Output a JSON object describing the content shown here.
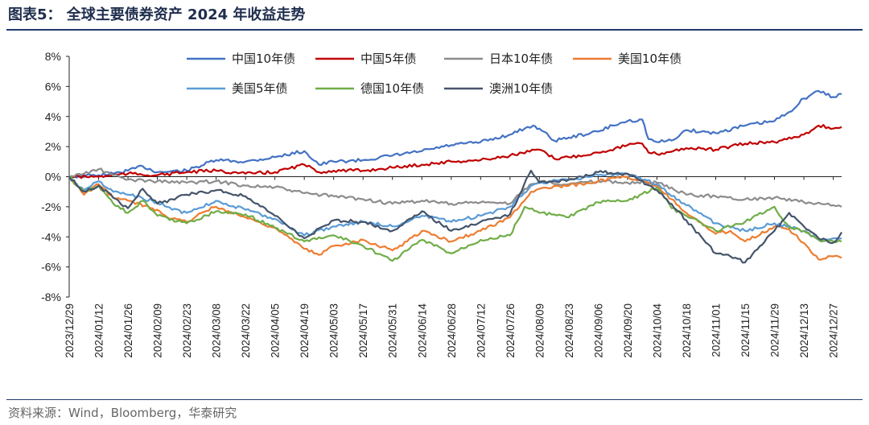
{
  "figure": {
    "title": "图表5：  全球主要债券资产 2024 年收益走势",
    "source": "资料来源：Wind，Bloomberg，华泰研究"
  },
  "chart_data": {
    "type": "line",
    "title": "",
    "xlabel": "",
    "ylabel": "",
    "ylim": [
      -8,
      8
    ],
    "y_ticks": [
      8,
      6,
      4,
      2,
      0,
      -2,
      -4,
      -6,
      -8
    ],
    "y_tick_labels": [
      "8%",
      "6%",
      "4%",
      "2%",
      "0%",
      "-2%",
      "-4%",
      "-6%",
      "-8%"
    ],
    "x_tick_labels": [
      "2023/12/29",
      "2024/01/12",
      "2024/01/26",
      "2024/02/09",
      "2024/02/23",
      "2024/03/08",
      "2024/03/22",
      "2024/04/05",
      "2024/04/19",
      "2024/05/03",
      "2024/05/17",
      "2024/05/31",
      "2024/06/14",
      "2024/06/28",
      "2024/07/12",
      "2024/07/26",
      "2024/08/09",
      "2024/08/23",
      "2024/09/06",
      "2024/09/20",
      "2024/10/04",
      "2024/10/18",
      "2024/11/01",
      "2024/11/15",
      "2024/11/29",
      "2024/12/13",
      "2024/12/27"
    ],
    "x_end_date": "2024/12/31",
    "legend_position": "top",
    "grid": false,
    "series": [
      {
        "name": "中国10年债",
        "color": "#4472c4",
        "points": [
          [
            "2023/12/29",
            0
          ],
          [
            "2024/01/12",
            0.1
          ],
          [
            "2024/01/19",
            0.2
          ],
          [
            "2024/01/26",
            0.4
          ],
          [
            "2024/02/02",
            0.7
          ],
          [
            "2024/02/09",
            0.3
          ],
          [
            "2024/02/23",
            0.4
          ],
          [
            "2024/03/08",
            1.1
          ],
          [
            "2024/03/22",
            1.0
          ],
          [
            "2024/04/05",
            1.3
          ],
          [
            "2024/04/19",
            1.7
          ],
          [
            "2024/04/26",
            0.8
          ],
          [
            "2024/05/03",
            1.0
          ],
          [
            "2024/05/17",
            1.1
          ],
          [
            "2024/05/31",
            1.4
          ],
          [
            "2024/06/14",
            1.7
          ],
          [
            "2024/06/28",
            2.1
          ],
          [
            "2024/07/12",
            2.3
          ],
          [
            "2024/07/26",
            2.8
          ],
          [
            "2024/08/02",
            3.2
          ],
          [
            "2024/08/06",
            3.4
          ],
          [
            "2024/08/09",
            3.2
          ],
          [
            "2024/08/16",
            2.4
          ],
          [
            "2024/08/23",
            2.6
          ],
          [
            "2024/09/06",
            3.0
          ],
          [
            "2024/09/13",
            3.4
          ],
          [
            "2024/09/20",
            3.7
          ],
          [
            "2024/09/27",
            3.8
          ],
          [
            "2024/09/30",
            2.5
          ],
          [
            "2024/10/04",
            2.3
          ],
          [
            "2024/10/11",
            2.4
          ],
          [
            "2024/10/18",
            3.1
          ],
          [
            "2024/11/01",
            2.9
          ],
          [
            "2024/11/15",
            3.4
          ],
          [
            "2024/11/29",
            3.7
          ],
          [
            "2024/12/06",
            4.3
          ],
          [
            "2024/12/13",
            5.2
          ],
          [
            "2024/12/20",
            5.7
          ],
          [
            "2024/12/27",
            5.3
          ],
          [
            "2024/12/31",
            5.5
          ]
        ]
      },
      {
        "name": "中国5年债",
        "color": "#c00000",
        "points": [
          [
            "2023/12/29",
            0
          ],
          [
            "2024/01/12",
            0.0
          ],
          [
            "2024/01/26",
            0.2
          ],
          [
            "2024/02/09",
            0.1
          ],
          [
            "2024/02/23",
            0.3
          ],
          [
            "2024/03/08",
            0.4
          ],
          [
            "2024/03/22",
            0.2
          ],
          [
            "2024/04/05",
            0.3
          ],
          [
            "2024/04/19",
            0.8
          ],
          [
            "2024/04/26",
            0.3
          ],
          [
            "2024/05/03",
            0.4
          ],
          [
            "2024/05/17",
            0.4
          ],
          [
            "2024/05/31",
            0.6
          ],
          [
            "2024/06/14",
            0.8
          ],
          [
            "2024/06/28",
            1.0
          ],
          [
            "2024/07/12",
            1.1
          ],
          [
            "2024/07/26",
            1.4
          ],
          [
            "2024/08/09",
            1.8
          ],
          [
            "2024/08/16",
            1.2
          ],
          [
            "2024/08/23",
            1.3
          ],
          [
            "2024/09/06",
            1.6
          ],
          [
            "2024/09/20",
            2.1
          ],
          [
            "2024/09/27",
            2.2
          ],
          [
            "2024/09/30",
            1.6
          ],
          [
            "2024/10/04",
            1.5
          ],
          [
            "2024/10/18",
            1.9
          ],
          [
            "2024/11/01",
            1.8
          ],
          [
            "2024/11/15",
            2.2
          ],
          [
            "2024/11/29",
            2.3
          ],
          [
            "2024/12/13",
            2.8
          ],
          [
            "2024/12/20",
            3.4
          ],
          [
            "2024/12/27",
            3.2
          ],
          [
            "2024/12/31",
            3.3
          ]
        ]
      },
      {
        "name": "日本10年债",
        "color": "#8c8c8c",
        "points": [
          [
            "2023/12/29",
            0
          ],
          [
            "2024/01/05",
            0.2
          ],
          [
            "2024/01/12",
            0.5
          ],
          [
            "2024/01/19",
            0.1
          ],
          [
            "2024/01/26",
            -0.2
          ],
          [
            "2024/02/09",
            -0.3
          ],
          [
            "2024/02/23",
            -0.4
          ],
          [
            "2024/03/08",
            -0.3
          ],
          [
            "2024/03/22",
            -0.6
          ],
          [
            "2024/04/05",
            -0.7
          ],
          [
            "2024/04/19",
            -1.1
          ],
          [
            "2024/05/03",
            -1.3
          ],
          [
            "2024/05/17",
            -1.5
          ],
          [
            "2024/05/31",
            -1.8
          ],
          [
            "2024/06/14",
            -1.6
          ],
          [
            "2024/06/28",
            -1.8
          ],
          [
            "2024/07/12",
            -1.7
          ],
          [
            "2024/07/26",
            -1.8
          ],
          [
            "2024/08/02",
            -0.8
          ],
          [
            "2024/08/09",
            -0.3
          ],
          [
            "2024/08/23",
            -0.5
          ],
          [
            "2024/09/06",
            -0.3
          ],
          [
            "2024/09/20",
            -0.4
          ],
          [
            "2024/10/04",
            -0.4
          ],
          [
            "2024/10/18",
            -1.2
          ],
          [
            "2024/11/01",
            -1.3
          ],
          [
            "2024/11/15",
            -1.5
          ],
          [
            "2024/11/29",
            -1.4
          ],
          [
            "2024/12/13",
            -1.7
          ],
          [
            "2024/12/27",
            -1.9
          ],
          [
            "2024/12/31",
            -2.0
          ]
        ]
      },
      {
        "name": "美国10年债",
        "color": "#ed7d31",
        "points": [
          [
            "2023/12/29",
            0
          ],
          [
            "2024/01/05",
            -1.2
          ],
          [
            "2024/01/12",
            -0.5
          ],
          [
            "2024/01/19",
            -1.4
          ],
          [
            "2024/01/26",
            -1.6
          ],
          [
            "2024/02/09",
            -2.2
          ],
          [
            "2024/02/16",
            -2.8
          ],
          [
            "2024/02/23",
            -3.0
          ],
          [
            "2024/03/01",
            -2.4
          ],
          [
            "2024/03/08",
            -2.0
          ],
          [
            "2024/03/22",
            -2.7
          ],
          [
            "2024/04/05",
            -3.4
          ],
          [
            "2024/04/19",
            -4.8
          ],
          [
            "2024/04/26",
            -5.2
          ],
          [
            "2024/05/03",
            -4.6
          ],
          [
            "2024/05/17",
            -4.2
          ],
          [
            "2024/05/31",
            -4.9
          ],
          [
            "2024/06/07",
            -4.3
          ],
          [
            "2024/06/14",
            -3.6
          ],
          [
            "2024/06/28",
            -4.3
          ],
          [
            "2024/07/12",
            -3.6
          ],
          [
            "2024/07/26",
            -2.7
          ],
          [
            "2024/08/05",
            -1.0
          ],
          [
            "2024/08/09",
            -0.8
          ],
          [
            "2024/08/23",
            -0.6
          ],
          [
            "2024/09/06",
            -0.3
          ],
          [
            "2024/09/20",
            0.0
          ],
          [
            "2024/10/04",
            -0.6
          ],
          [
            "2024/10/11",
            -1.5
          ],
          [
            "2024/10/18",
            -2.4
          ],
          [
            "2024/11/01",
            -3.8
          ],
          [
            "2024/11/08",
            -3.6
          ],
          [
            "2024/11/15",
            -4.3
          ],
          [
            "2024/11/29",
            -3.3
          ],
          [
            "2024/12/06",
            -3.5
          ],
          [
            "2024/12/13",
            -4.4
          ],
          [
            "2024/12/20",
            -5.5
          ],
          [
            "2024/12/27",
            -5.3
          ],
          [
            "2024/12/31",
            -5.4
          ]
        ]
      },
      {
        "name": "美国5年债",
        "color": "#5b9bd5",
        "points": [
          [
            "2023/12/29",
            0
          ],
          [
            "2024/01/05",
            -0.9
          ],
          [
            "2024/01/12",
            -0.3
          ],
          [
            "2024/01/19",
            -1.0
          ],
          [
            "2024/01/26",
            -1.2
          ],
          [
            "2024/02/09",
            -1.7
          ],
          [
            "2024/02/16",
            -2.2
          ],
          [
            "2024/02/23",
            -2.4
          ],
          [
            "2024/03/08",
            -1.6
          ],
          [
            "2024/03/22",
            -2.2
          ],
          [
            "2024/04/05",
            -2.8
          ],
          [
            "2024/04/19",
            -3.9
          ],
          [
            "2024/05/03",
            -3.3
          ],
          [
            "2024/05/17",
            -3.0
          ],
          [
            "2024/05/31",
            -3.3
          ],
          [
            "2024/06/14",
            -2.6
          ],
          [
            "2024/06/28",
            -3.0
          ],
          [
            "2024/07/12",
            -2.6
          ],
          [
            "2024/07/26",
            -2.0
          ],
          [
            "2024/08/05",
            -0.6
          ],
          [
            "2024/08/09",
            -0.4
          ],
          [
            "2024/08/23",
            -0.2
          ],
          [
            "2024/09/06",
            0.1
          ],
          [
            "2024/09/20",
            0.2
          ],
          [
            "2024/10/04",
            -0.5
          ],
          [
            "2024/10/18",
            -1.9
          ],
          [
            "2024/11/01",
            -3.1
          ],
          [
            "2024/11/15",
            -3.6
          ],
          [
            "2024/11/29",
            -3.1
          ],
          [
            "2024/12/13",
            -3.6
          ],
          [
            "2024/12/20",
            -4.2
          ],
          [
            "2024/12/27",
            -4.1
          ],
          [
            "2024/12/31",
            -4.1
          ]
        ]
      },
      {
        "name": "德国10年债",
        "color": "#70ad47",
        "points": [
          [
            "2023/12/29",
            0
          ],
          [
            "2024/01/05",
            -1.0
          ],
          [
            "2024/01/12",
            -0.6
          ],
          [
            "2024/01/19",
            -1.8
          ],
          [
            "2024/01/26",
            -2.4
          ],
          [
            "2024/02/02",
            -1.6
          ],
          [
            "2024/02/09",
            -2.6
          ],
          [
            "2024/02/23",
            -3.1
          ],
          [
            "2024/03/08",
            -2.3
          ],
          [
            "2024/03/22",
            -2.5
          ],
          [
            "2024/04/05",
            -3.4
          ],
          [
            "2024/04/19",
            -4.3
          ],
          [
            "2024/05/03",
            -3.9
          ],
          [
            "2024/05/17",
            -4.6
          ],
          [
            "2024/05/31",
            -5.6
          ],
          [
            "2024/06/14",
            -4.2
          ],
          [
            "2024/06/28",
            -5.1
          ],
          [
            "2024/07/12",
            -4.2
          ],
          [
            "2024/07/26",
            -3.9
          ],
          [
            "2024/08/02",
            -2.0
          ],
          [
            "2024/08/09",
            -2.4
          ],
          [
            "2024/08/23",
            -2.7
          ],
          [
            "2024/09/06",
            -1.7
          ],
          [
            "2024/09/20",
            -1.6
          ],
          [
            "2024/10/04",
            -0.7
          ],
          [
            "2024/10/11",
            -2.1
          ],
          [
            "2024/10/18",
            -2.6
          ],
          [
            "2024/11/01",
            -3.6
          ],
          [
            "2024/11/15",
            -3.0
          ],
          [
            "2024/11/29",
            -2.0
          ],
          [
            "2024/12/06",
            -3.4
          ],
          [
            "2024/12/13",
            -3.6
          ],
          [
            "2024/12/20",
            -4.2
          ],
          [
            "2024/12/27",
            -4.3
          ],
          [
            "2024/12/31",
            -4.3
          ]
        ]
      },
      {
        "name": "澳洲10年债",
        "color": "#44546a",
        "points": [
          [
            "2023/12/29",
            0
          ],
          [
            "2024/01/05",
            -1.0
          ],
          [
            "2024/01/12",
            -0.6
          ],
          [
            "2024/01/19",
            -1.4
          ],
          [
            "2024/01/26",
            -2.1
          ],
          [
            "2024/02/02",
            -0.8
          ],
          [
            "2024/02/09",
            -1.8
          ],
          [
            "2024/02/23",
            -1.2
          ],
          [
            "2024/03/08",
            -0.9
          ],
          [
            "2024/03/22",
            -1.3
          ],
          [
            "2024/04/05",
            -2.6
          ],
          [
            "2024/04/19",
            -4.1
          ],
          [
            "2024/05/03",
            -2.9
          ],
          [
            "2024/05/17",
            -3.0
          ],
          [
            "2024/05/31",
            -3.6
          ],
          [
            "2024/06/14",
            -2.3
          ],
          [
            "2024/06/28",
            -3.6
          ],
          [
            "2024/07/12",
            -3.0
          ],
          [
            "2024/07/26",
            -2.5
          ],
          [
            "2024/08/05",
            0.4
          ],
          [
            "2024/08/09",
            -0.4
          ],
          [
            "2024/08/23",
            -0.2
          ],
          [
            "2024/09/06",
            0.3
          ],
          [
            "2024/09/20",
            0.2
          ],
          [
            "2024/10/04",
            -0.9
          ],
          [
            "2024/10/18",
            -2.9
          ],
          [
            "2024/11/01",
            -5.1
          ],
          [
            "2024/11/08",
            -5.3
          ],
          [
            "2024/11/15",
            -5.7
          ],
          [
            "2024/11/29",
            -3.6
          ],
          [
            "2024/12/06",
            -2.4
          ],
          [
            "2024/12/13",
            -3.3
          ],
          [
            "2024/12/20",
            -4.1
          ],
          [
            "2024/12/27",
            -4.4
          ],
          [
            "2024/12/31",
            -3.7
          ]
        ]
      }
    ]
  }
}
